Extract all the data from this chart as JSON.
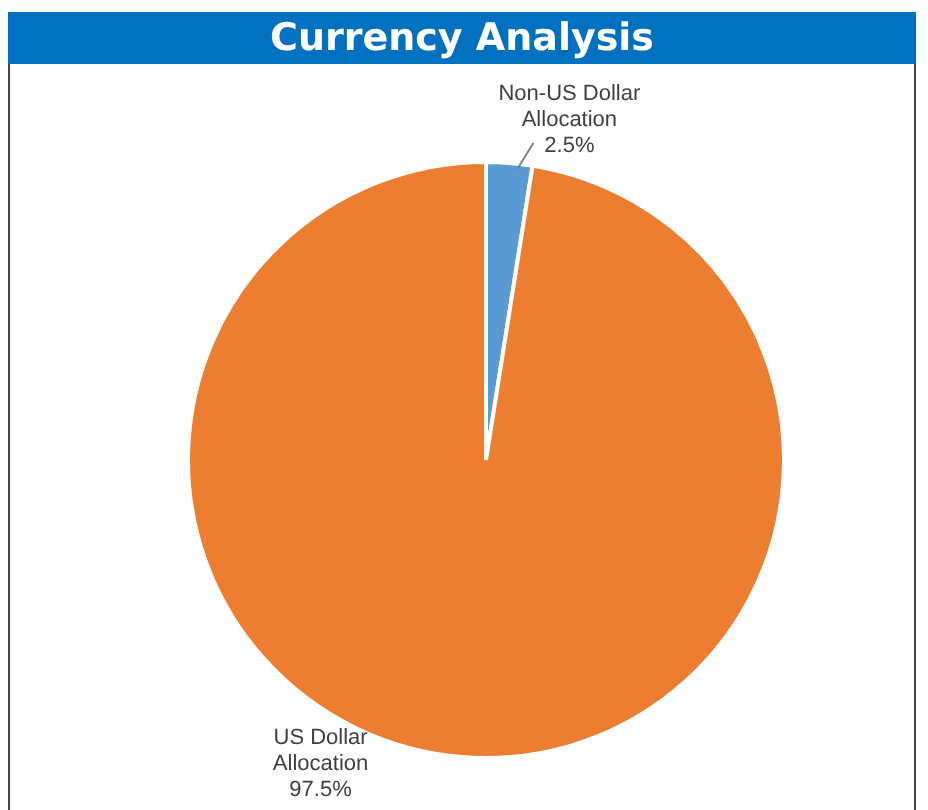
{
  "chart_data": {
    "type": "pie",
    "title": "Currency Analysis",
    "categories": [
      "Non-US Dollar Allocation",
      "US Dollar Allocation"
    ],
    "values": [
      2.5,
      97.5
    ],
    "colors": [
      "#5b9bd5",
      "#ed7d31"
    ],
    "value_labels": [
      "2.5%",
      "97.5%"
    ],
    "legend": false
  }
}
